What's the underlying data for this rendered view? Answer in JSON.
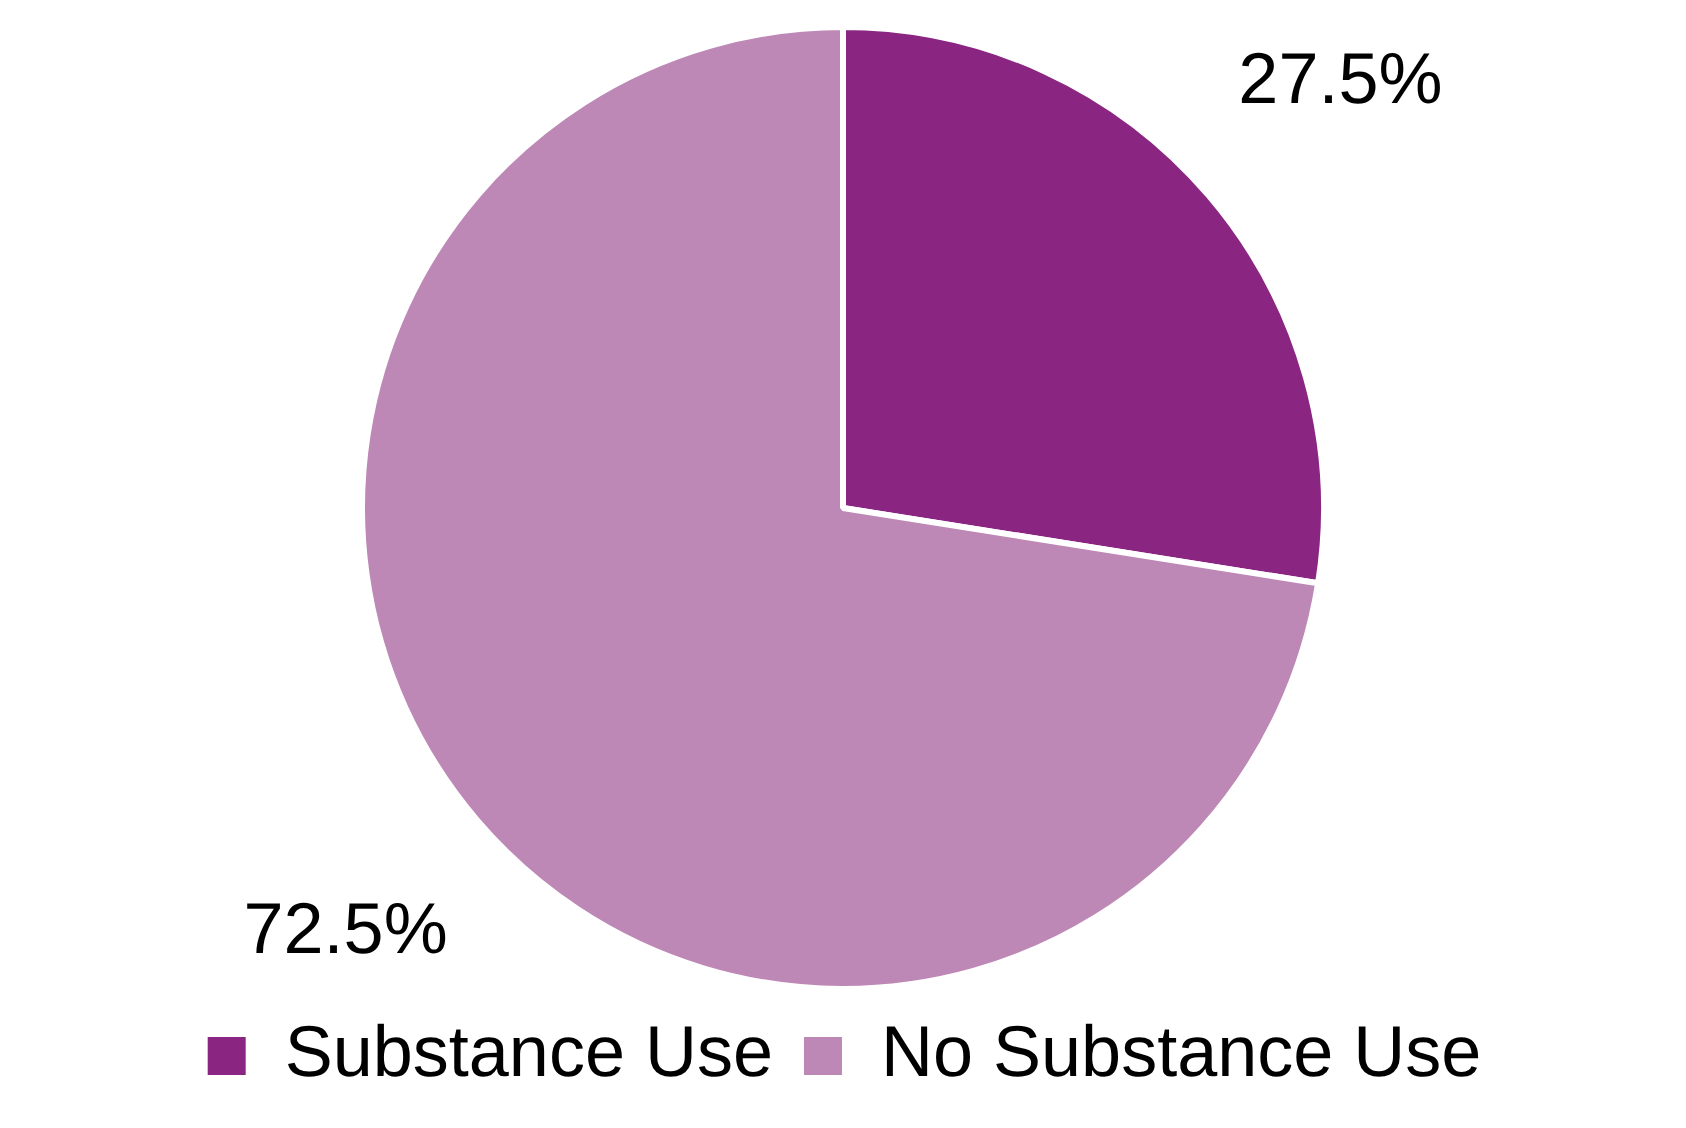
{
  "chart_data": {
    "type": "pie",
    "categories": [
      "Substance Use",
      "No Substance Use"
    ],
    "values": [
      27.5,
      72.5
    ],
    "value_labels": [
      "27.5%",
      "72.5%"
    ],
    "colors": [
      "#8b2582",
      "#bd88b5"
    ],
    "legend": "bottom"
  }
}
